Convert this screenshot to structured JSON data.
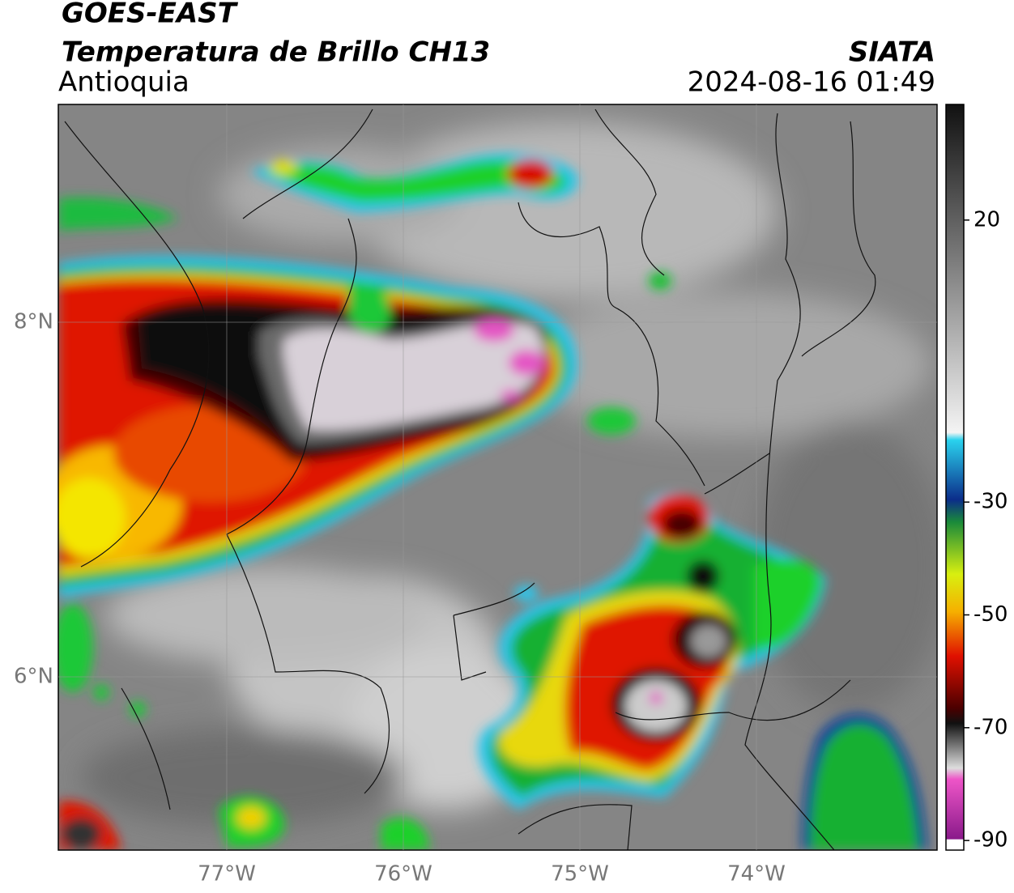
{
  "header": {
    "title": "GOES-EAST",
    "subtitle": "Temperatura de Brillo CH13",
    "region": "Antioquia",
    "source": "SIATA",
    "timestamp": "2024-08-16 01:49"
  },
  "map": {
    "ylim": [
      5.023,
      9.228
    ],
    "xlim": [
      -77.954,
      -72.977
    ],
    "yticks": [
      {
        "value": 8,
        "label": "8°N"
      },
      {
        "value": 6,
        "label": "6°N"
      }
    ],
    "xticks": [
      {
        "value": -77,
        "label": "77°W"
      },
      {
        "value": -76,
        "label": "76°W"
      },
      {
        "value": -75,
        "label": "75°W"
      },
      {
        "value": -74,
        "label": "74°W"
      }
    ],
    "grid": true
  },
  "colorbar": {
    "lim": [
      -91.7,
      40.5
    ],
    "ticks": [
      20,
      -30,
      -50,
      -70,
      -90
    ]
  }
}
